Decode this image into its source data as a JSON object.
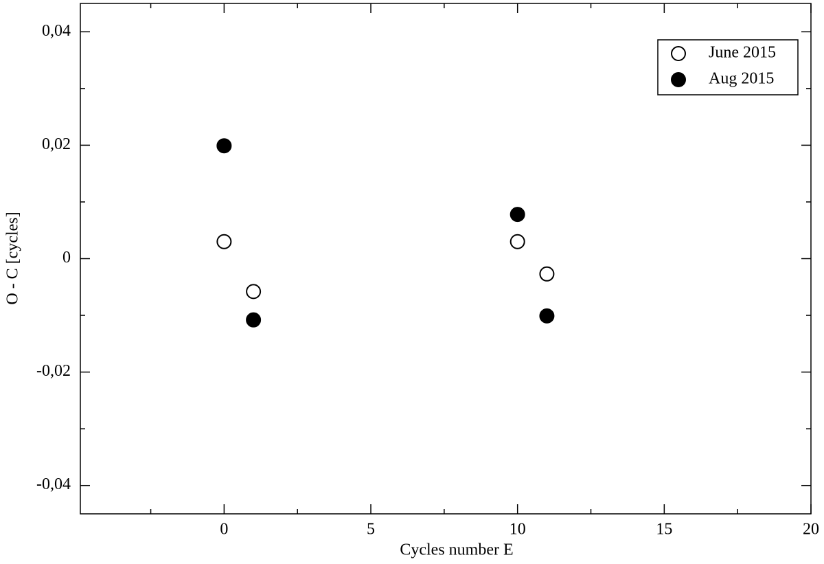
{
  "chart_data": {
    "type": "scatter",
    "x_label": "Cycles number E",
    "y_label": "O - C [cycles]",
    "xlim": [
      -4.9,
      20
    ],
    "ylim": [
      -0.045,
      0.045
    ],
    "xticks": [
      0,
      5,
      10,
      15,
      20
    ],
    "xminorticks": [
      -2.5,
      2.5,
      7.5,
      12.5,
      17.5
    ],
    "yticks": [
      {
        "value": -0.04,
        "label": "-0,04"
      },
      {
        "value": -0.02,
        "label": "-0,02"
      },
      0,
      {
        "value": 0.02,
        "label": "0,02"
      },
      {
        "value": 0.04,
        "label": "0,04"
      }
    ],
    "yminorticks": [
      -0.03,
      -0.01,
      0.01,
      0.03
    ],
    "legend": "upper right",
    "series": [
      {
        "name": "June 2015",
        "color": "#000000",
        "marker": "open",
        "x": [
          0,
          1,
          10,
          11
        ],
        "values": [
          0.003,
          -0.0058,
          0.003,
          -0.0027
        ]
      },
      {
        "name": "Aug 2015",
        "color": "#000000",
        "marker": "filled",
        "x": [
          0,
          1,
          10,
          11
        ],
        "values": [
          0.0199,
          -0.0108,
          0.0078,
          -0.0101
        ]
      }
    ]
  }
}
